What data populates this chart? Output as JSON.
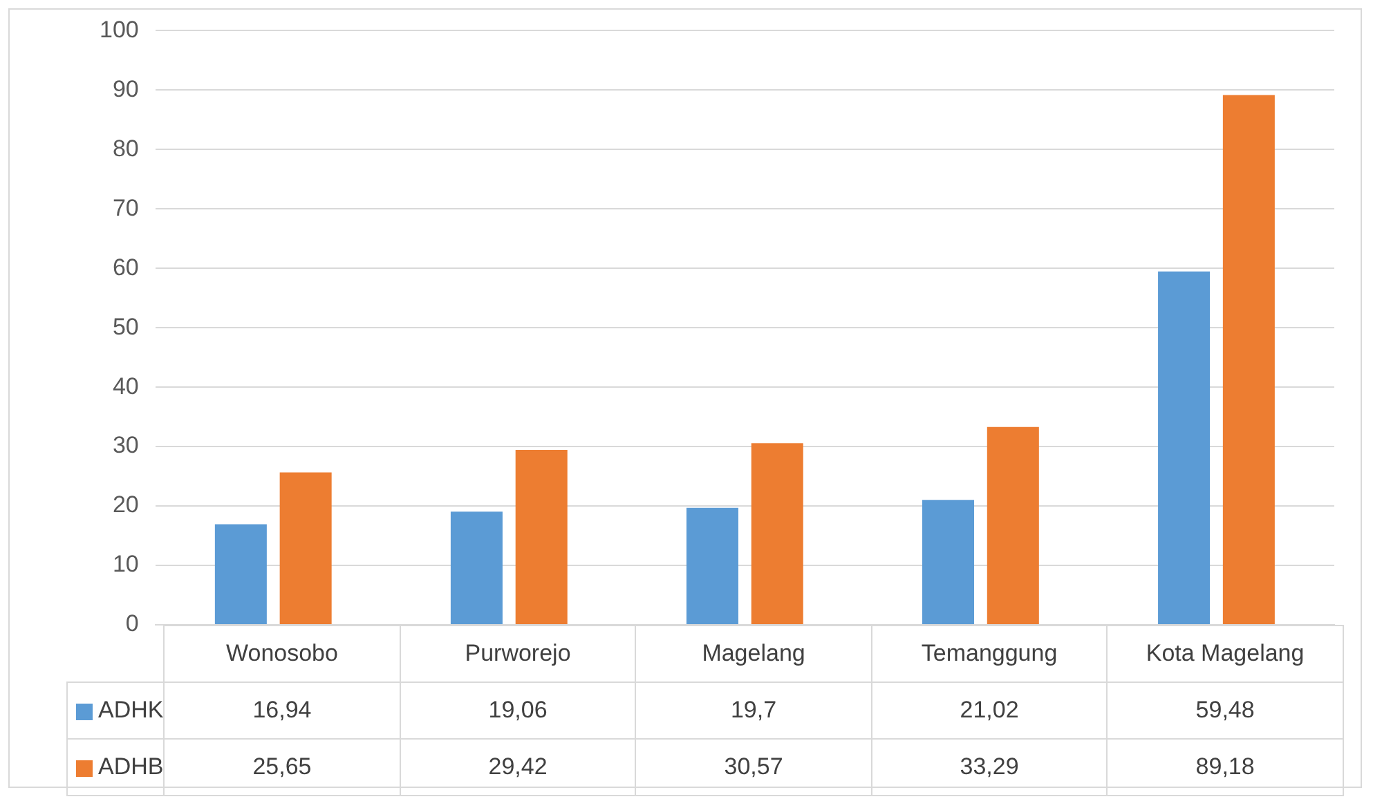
{
  "chart_data": {
    "type": "bar",
    "categories": [
      "Wonosobo",
      "Purworejo",
      "Magelang",
      "Temanggung",
      "Kota Magelang"
    ],
    "series": [
      {
        "name": "ADHK",
        "color": "#5b9bd5",
        "values": [
          16.94,
          19.06,
          19.7,
          21.02,
          59.48
        ],
        "value_labels": [
          "16,94",
          "19,06",
          "19,7",
          "21,02",
          "59,48"
        ]
      },
      {
        "name": "ADHB",
        "color": "#ed7d31",
        "values": [
          25.65,
          29.42,
          30.57,
          33.29,
          89.18
        ],
        "value_labels": [
          "25,65",
          "29,42",
          "30,57",
          "33,29",
          "89,18"
        ]
      }
    ],
    "ylim": [
      0,
      100
    ],
    "yticks": [
      0,
      10,
      20,
      30,
      40,
      50,
      60,
      70,
      80,
      90,
      100
    ],
    "grid": "y",
    "legend": "bottom"
  }
}
